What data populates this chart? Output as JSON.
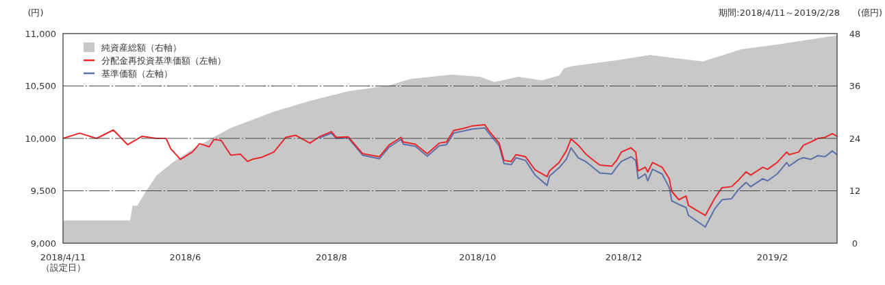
{
  "chart_data": {
    "type": "line",
    "subtitle": "期間:2018/4/11～2019/2/28",
    "ylabel": "(円)",
    "y2label": "(億円)",
    "xlim": [
      "2018-04-11",
      "2019-02-28"
    ],
    "xticks": [
      {
        "value": "2018-04-11",
        "label": "2018/4/11\n（設定日）"
      },
      {
        "value": "2018-06-01",
        "label": "2018/6"
      },
      {
        "value": "2018-08-01",
        "label": "2018/8"
      },
      {
        "value": "2018-10-01",
        "label": "2018/10"
      },
      {
        "value": "2018-12-01",
        "label": "2018/12"
      },
      {
        "value": "2019-02-01",
        "label": "2019/2"
      }
    ],
    "ylim": [
      9000,
      11000
    ],
    "yticks": [
      {
        "value": 9000,
        "label": "9,000"
      },
      {
        "value": 9500,
        "label": "9,500"
      },
      {
        "value": 10000,
        "label": "10,000"
      },
      {
        "value": 10500,
        "label": "10,500"
      },
      {
        "value": 11000,
        "label": "11,000"
      }
    ],
    "y2lim": [
      0,
      48
    ],
    "y2ticks": [
      0,
      12,
      24,
      36,
      48
    ],
    "grid": "y",
    "legend": "top left",
    "series": [
      {
        "name": "純資産総額（右軸）",
        "type": "area",
        "axis": "y2",
        "color": "#c8c8c8",
        "x": [
          "2018-04-11",
          "2018-05-09",
          "2018-05-10",
          "2018-05-12",
          "2018-05-16",
          "2018-05-20",
          "2018-05-27",
          "2018-06-04",
          "2018-06-13",
          "2018-06-20",
          "2018-07-08",
          "2018-07-23",
          "2018-08-08",
          "2018-08-25",
          "2018-09-03",
          "2018-09-20",
          "2018-10-02",
          "2018-10-08",
          "2018-10-18",
          "2018-10-28",
          "2018-11-04",
          "2018-11-06",
          "2018-11-09",
          "2018-11-28",
          "2018-12-12",
          "2018-12-22",
          "2019-01-03",
          "2019-01-19",
          "2019-02-03",
          "2019-02-26",
          "2019-02-28"
        ],
        "values": [
          5.2,
          5.2,
          8.6,
          8.6,
          12.2,
          15.5,
          18.6,
          21.5,
          24.3,
          26.4,
          30.1,
          32.6,
          34.8,
          36.1,
          37.6,
          38.6,
          38.1,
          36.9,
          38.1,
          37.3,
          38.4,
          40.0,
          40.5,
          41.9,
          43.1,
          42.4,
          41.6,
          44.4,
          45.5,
          47.4,
          47.5
        ]
      },
      {
        "name": "分配金再投資基準価額（左軸）",
        "color": "#e8262b",
        "x": [
          "2018-04-11",
          "2018-04-18",
          "2018-04-25",
          "2018-05-02",
          "2018-05-08",
          "2018-05-14",
          "2018-05-20",
          "2018-05-24",
          "2018-05-26",
          "2018-05-30",
          "2018-06-04",
          "2018-06-07",
          "2018-06-11",
          "2018-06-13",
          "2018-06-16",
          "2018-06-20",
          "2018-06-24",
          "2018-06-27",
          "2018-06-29",
          "2018-07-03",
          "2018-07-08",
          "2018-07-13",
          "2018-07-17",
          "2018-07-23",
          "2018-07-27",
          "2018-08-01",
          "2018-08-03",
          "2018-08-08",
          "2018-08-14",
          "2018-08-21",
          "2018-08-25",
          "2018-08-30",
          "2018-08-31",
          "2018-09-05",
          "2018-09-10",
          "2018-09-15",
          "2018-09-18",
          "2018-09-21",
          "2018-09-25",
          "2018-09-29",
          "2018-10-04",
          "2018-10-06",
          "2018-10-10",
          "2018-10-12",
          "2018-10-15",
          "2018-10-17",
          "2018-10-21",
          "2018-10-25",
          "2018-10-30",
          "2018-10-31",
          "2018-11-04",
          "2018-11-07",
          "2018-11-09",
          "2018-11-12",
          "2018-11-15",
          "2018-11-17",
          "2018-11-21",
          "2018-11-26",
          "2018-11-28",
          "2018-11-30",
          "2018-12-04",
          "2018-12-06",
          "2018-12-07",
          "2018-12-10",
          "2018-12-11",
          "2018-12-13",
          "2018-12-17",
          "2018-12-20",
          "2018-12-21",
          "2018-12-24",
          "2018-12-27",
          "2018-12-28",
          "2019-01-04",
          "2019-01-08",
          "2019-01-11",
          "2019-01-15",
          "2019-01-18",
          "2019-01-21",
          "2019-01-23",
          "2019-01-28",
          "2019-01-30",
          "2019-02-03",
          "2019-02-07",
          "2019-02-08",
          "2019-02-12",
          "2019-02-14",
          "2019-02-17",
          "2019-02-20",
          "2019-02-23",
          "2019-02-26",
          "2019-02-28"
        ],
        "values": [
          10000,
          10050,
          10000,
          10080,
          9940,
          10020,
          10000,
          10000,
          9900,
          9800,
          9870,
          9950,
          9920,
          9990,
          9980,
          9840,
          9850,
          9780,
          9800,
          9820,
          9870,
          10010,
          10030,
          9955,
          10015,
          10065,
          10010,
          10015,
          9855,
          9825,
          9935,
          10010,
          9965,
          9945,
          9855,
          9955,
          9965,
          10075,
          10095,
          10120,
          10130,
          10065,
          9955,
          9790,
          9780,
          9845,
          9825,
          9700,
          9635,
          9690,
          9770,
          9880,
          9995,
          9935,
          9855,
          9815,
          9745,
          9735,
          9790,
          9870,
          9910,
          9870,
          9690,
          9725,
          9680,
          9770,
          9725,
          9615,
          9495,
          9415,
          9450,
          9360,
          9265,
          9430,
          9530,
          9540,
          9605,
          9680,
          9650,
          9725,
          9705,
          9770,
          9870,
          9845,
          9870,
          9935,
          9965,
          10000,
          10010,
          10045,
          10020
        ]
      },
      {
        "name": "基準価額（左軸）",
        "color": "#5b6fa8",
        "x": [
          "2018-07-27",
          "2018-08-01",
          "2018-08-03",
          "2018-08-08",
          "2018-08-14",
          "2018-08-21",
          "2018-08-25",
          "2018-08-30",
          "2018-08-31",
          "2018-09-05",
          "2018-09-10",
          "2018-09-15",
          "2018-09-18",
          "2018-09-21",
          "2018-09-25",
          "2018-09-29",
          "2018-10-04",
          "2018-10-06",
          "2018-10-10",
          "2018-10-12",
          "2018-10-15",
          "2018-10-17",
          "2018-10-21",
          "2018-10-25",
          "2018-10-30",
          "2018-10-31",
          "2018-11-04",
          "2018-11-07",
          "2018-11-09",
          "2018-11-12",
          "2018-11-15",
          "2018-11-17",
          "2018-11-21",
          "2018-11-26",
          "2018-11-28",
          "2018-11-30",
          "2018-12-04",
          "2018-12-06",
          "2018-12-07",
          "2018-12-10",
          "2018-12-11",
          "2018-12-13",
          "2018-12-17",
          "2018-12-20",
          "2018-12-21",
          "2018-12-24",
          "2018-12-27",
          "2018-12-28",
          "2019-01-04",
          "2019-01-08",
          "2019-01-11",
          "2019-01-15",
          "2019-01-18",
          "2019-01-21",
          "2019-01-23",
          "2019-01-28",
          "2019-01-30",
          "2019-02-03",
          "2019-02-07",
          "2019-02-08",
          "2019-02-12",
          "2019-02-14",
          "2019-02-17",
          "2019-02-20",
          "2019-02-23",
          "2019-02-26",
          "2019-02-28"
        ],
        "values": [
          10005,
          10050,
          10000,
          10005,
          9840,
          9805,
          9915,
          9990,
          9945,
          9925,
          9830,
          9930,
          9940,
          10050,
          10070,
          10090,
          10100,
          10040,
          9930,
          9760,
          9750,
          9815,
          9790,
          9650,
          9550,
          9640,
          9720,
          9800,
          9910,
          9815,
          9780,
          9745,
          9670,
          9660,
          9725,
          9780,
          9825,
          9790,
          9615,
          9660,
          9595,
          9705,
          9660,
          9530,
          9405,
          9370,
          9340,
          9265,
          9155,
          9330,
          9415,
          9425,
          9515,
          9580,
          9540,
          9615,
          9595,
          9660,
          9770,
          9735,
          9800,
          9815,
          9800,
          9835,
          9825,
          9880,
          9845
        ]
      }
    ]
  }
}
